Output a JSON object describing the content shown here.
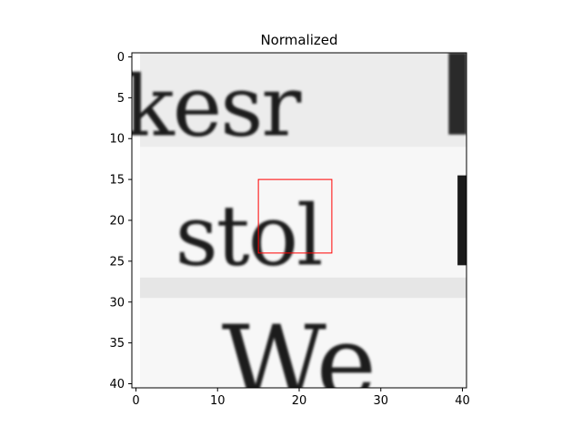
{
  "chart_data": {
    "type": "heatmap",
    "title": "Normalized",
    "colormap": "gray",
    "image_shape": [
      41,
      41
    ],
    "xlim": [
      -0.5,
      40.5
    ],
    "ylim": [
      40.5,
      -0.5
    ],
    "x_ticks": [
      0,
      10,
      20,
      30,
      40
    ],
    "y_ticks": [
      0,
      5,
      10,
      15,
      20,
      25,
      30,
      35,
      40
    ],
    "image_content": {
      "description_rows": [
        {
          "rows": [
            0,
            10
          ],
          "text": "kesr"
        },
        {
          "rows": [
            15,
            27
          ],
          "text": "stol"
        },
        {
          "rows": [
            29,
            40
          ],
          "text": "We"
        }
      ]
    },
    "highlight_box": {
      "x0": 15,
      "y0": 15,
      "x1": 24,
      "y1": 24,
      "color": "#ff0000"
    }
  }
}
